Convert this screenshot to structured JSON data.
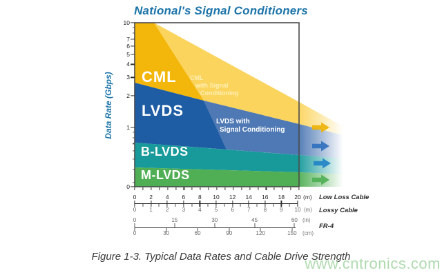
{
  "title": "National's Signal Conditioners",
  "caption": "Figure 1-3. Typical Data Rates and Cable Drive Strength",
  "watermark": "www.cntronics.com",
  "colors": {
    "title_blue": "#1c74a9",
    "cml_dark_yellow": "#f3b70b",
    "cml_sc_light_yellow": "#fbd45e",
    "lvds_dark_blue": "#1e5da4",
    "lvds_sc_light_blue": "#4e79b4",
    "blvds_teal": "#189a9b",
    "mlvds_green": "#50af55",
    "watermark_green": "#94ce94"
  },
  "y_axis": {
    "label": "Data Rate (Gbps)",
    "scale": "log",
    "ticks": {
      "labels": [
        "10",
        "7",
        "6",
        "5",
        "4",
        "3",
        "2",
        "1",
        "0"
      ],
      "fracs": [
        0,
        0.099,
        0.142,
        0.192,
        0.254,
        0.334,
        0.446,
        0.639,
        1
      ]
    },
    "major_marks": {
      "fracs": [
        0,
        0.099,
        0.142,
        0.192,
        0.254,
        0.334,
        0.446,
        0.639,
        1
      ]
    },
    "minor_marks": {
      "fracs": [
        0.029,
        0.062,
        0.668,
        0.7,
        0.737,
        0.78,
        0.831,
        0.893,
        0.973
      ]
    }
  },
  "plot_bottom_marks": {
    "fracs": [
      0,
      0.05,
      0.1,
      0.15,
      0.2,
      0.25,
      0.3,
      0.35,
      0.4,
      0.45,
      0.5,
      0.55,
      0.6,
      0.65,
      0.7,
      0.75,
      0.8,
      0.85,
      0.9,
      0.95,
      1
    ]
  },
  "scales": {
    "low_loss": {
      "name": "Low Loss Cable",
      "unit": "(m)",
      "ticks": {
        "labels": [
          "0",
          "2",
          "4",
          "6",
          "8",
          "10",
          "12",
          "14",
          "16",
          "18",
          "20"
        ]
      },
      "major_marks": {
        "fracs": [
          0,
          0.1,
          0.2,
          0.3,
          0.4,
          0.5,
          0.6,
          0.7,
          0.8,
          0.9,
          1
        ]
      },
      "minor_marks": {
        "fracs": [
          0.05,
          0.15,
          0.25,
          0.35,
          0.45,
          0.55,
          0.65,
          0.75,
          0.85,
          0.95
        ]
      }
    },
    "lossy": {
      "name": "Lossy Cable",
      "unit": "(m)",
      "ticks": {
        "labels": [
          "0",
          "1",
          "2",
          "3",
          "4",
          "5",
          "6",
          "7",
          "8",
          "9",
          "10"
        ]
      }
    },
    "fr4": {
      "name": "FR-4",
      "inches": {
        "unit": "(in)",
        "ticks": {
          "labels": [
            "0",
            "15",
            "30",
            "45",
            "60"
          ],
          "fracs": [
            0,
            0.248,
            0.497,
            0.745,
            0.993
          ]
        }
      },
      "cm": {
        "unit": "(cm)",
        "ticks": {
          "labels": [
            "0",
            "30",
            "60",
            "90",
            "120",
            "150"
          ],
          "fracs": [
            0,
            0.196,
            0.391,
            0.587,
            0.782,
            0.978
          ]
        }
      }
    }
  },
  "bands": {
    "cml": {
      "label": "CML"
    },
    "cml_sc": {
      "lines": [
        "CML",
        "with Signal",
        "Conditioning"
      ]
    },
    "lvds": {
      "label": "LVDS"
    },
    "lvds_sc": {
      "lines": [
        "LVDS with",
        "Signal Conditioning"
      ]
    },
    "blvds": {
      "label": "B-LVDS"
    },
    "mlvds": {
      "label": "M-LVDS"
    }
  },
  "chart_data": {
    "type": "area",
    "title": "National's Signal Conditioners",
    "ylabel": "Data Rate (Gbps)",
    "y_scale": "log",
    "ylim": [
      0.27,
      10
    ],
    "y_ticks": [
      10,
      7,
      6,
      5,
      4,
      3,
      2,
      1,
      0
    ],
    "x_axes": [
      {
        "name": "Low Loss Cable",
        "unit": "m",
        "ticks": [
          0,
          2,
          4,
          6,
          8,
          10,
          12,
          14,
          16,
          18,
          20
        ]
      },
      {
        "name": "Lossy Cable",
        "unit": "m",
        "ticks": [
          0,
          1,
          2,
          3,
          4,
          5,
          6,
          7,
          8,
          9,
          10
        ]
      },
      {
        "name": "FR-4",
        "unit": "in",
        "ticks": [
          0,
          15,
          30,
          45,
          60
        ]
      },
      {
        "name": "FR-4",
        "unit": "cm",
        "ticks": [
          0,
          30,
          60,
          90,
          120,
          150
        ]
      }
    ],
    "bands": [
      {
        "name": "CML",
        "rate_gbps_at_0m": [
          2.7,
          10
        ],
        "reach_low_loss_m": 8.4,
        "with_signal_conditioning": {
          "label": "CML with Signal Conditioning",
          "reach_low_loss_m": 20,
          "rate_gbps_at_20m": [
            1.1,
            1.8
          ]
        }
      },
      {
        "name": "LVDS",
        "rate_gbps_at_0m": [
          0.72,
          2.7
        ],
        "reach_low_loss_m": 11.2,
        "with_signal_conditioning": {
          "label": "LVDS with Signal Conditioning",
          "reach_low_loss_m": 20,
          "rate_gbps_at_20m": [
            0.55,
            1.1
          ]
        }
      },
      {
        "name": "B-LVDS",
        "rate_gbps_at_0m": [
          0.42,
          0.72
        ],
        "reach_low_loss_m": 20,
        "rate_gbps_at_20m": [
          0.38,
          0.55
        ]
      },
      {
        "name": "M-LVDS",
        "rate_gbps_at_0m": [
          0.27,
          0.42
        ],
        "reach_low_loss_m": 20,
        "rate_gbps_at_20m": [
          0.27,
          0.38
        ]
      }
    ],
    "annotations": [
      "Faded band extensions with right arrows indicate drive reach continues beyond the plotted 20 m range"
    ],
    "legend_position": "in-band labels",
    "grid": false
  }
}
